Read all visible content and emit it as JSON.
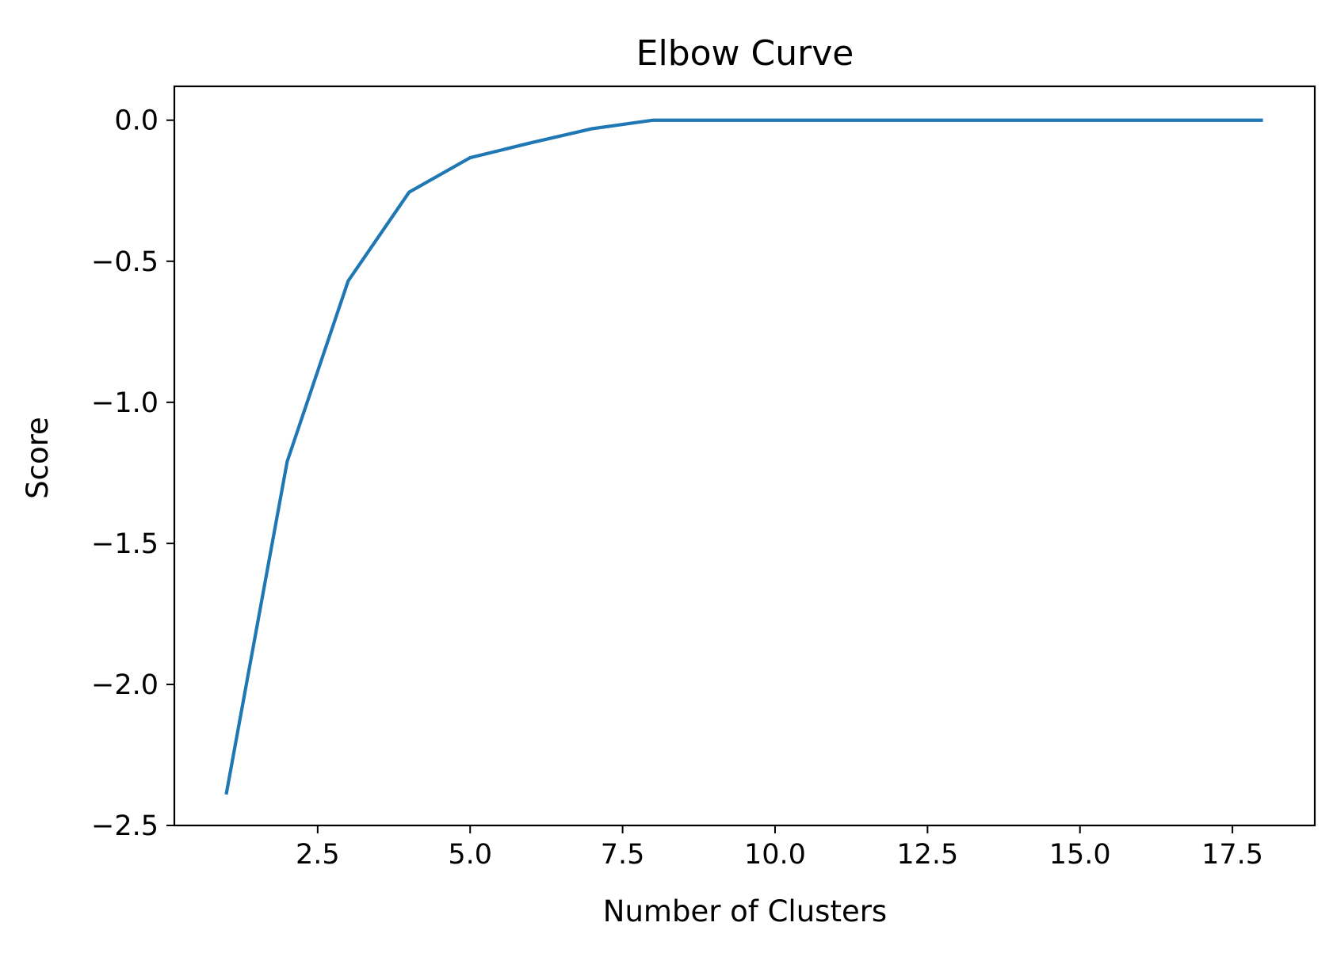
{
  "chart_data": {
    "type": "line",
    "title": "Elbow Curve",
    "xlabel": "Number of Clusters",
    "ylabel": "Score",
    "xlim": [
      0.15,
      18.85
    ],
    "ylim": [
      -2.5,
      0.12
    ],
    "xticks": [
      2.5,
      5.0,
      7.5,
      10.0,
      12.5,
      15.0,
      17.5
    ],
    "xtick_labels": [
      "2.5",
      "5.0",
      "7.5",
      "10.0",
      "12.5",
      "15.0",
      "17.5"
    ],
    "yticks": [
      0.0,
      -0.5,
      -1.0,
      -1.5,
      -2.0,
      -2.5
    ],
    "ytick_labels": [
      "0.0",
      "−0.5",
      "−1.0",
      "−1.5",
      "−2.0",
      "−2.5"
    ],
    "grid": false,
    "legend": null,
    "series": [
      {
        "color": "#1f77b4",
        "x": [
          1,
          2,
          3,
          4,
          5,
          6,
          7,
          8,
          9,
          10,
          11,
          12,
          13,
          14,
          15,
          16,
          17,
          18
        ],
        "y": [
          -2.39,
          -1.21,
          -0.57,
          -0.255,
          -0.133,
          -0.08,
          -0.03,
          0.0,
          0.0,
          0.0,
          0.0,
          0.0,
          0.0,
          0.0,
          0.0,
          0.0,
          0.0,
          0.0
        ]
      }
    ]
  }
}
